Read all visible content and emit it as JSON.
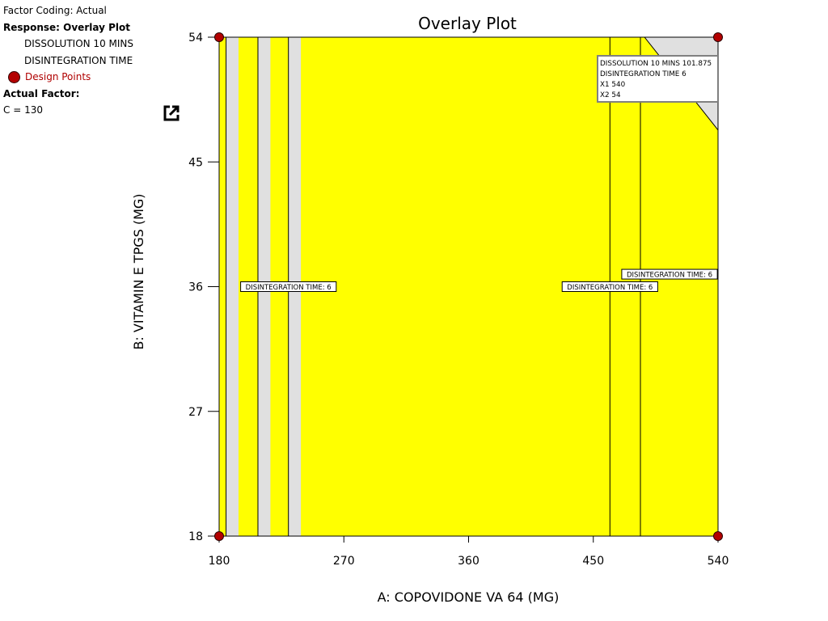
{
  "legend": {
    "factor_coding": "Factor Coding: Actual",
    "response": "Response: Overlay Plot",
    "items": [
      "DISSOLUTION 10 MINS",
      "DISINTEGRATION TIME"
    ],
    "design_points": "Design Points",
    "actual_factor_label": "Actual Factor:",
    "actual_factor_value": "C = 130"
  },
  "colors": {
    "feasible": "#ffff00",
    "infeasible": "#e0e0e0",
    "design_point": "#b30000"
  },
  "chart_data": {
    "type": "contour-overlay",
    "title": "Overlay Plot",
    "xlabel": "A: COPOVIDONE VA 64 (MG)",
    "ylabel": "B: VITAMIN E TPGS (MG)",
    "xlim": [
      180,
      540
    ],
    "ylim": [
      18,
      54
    ],
    "xticks": [
      180,
      270,
      360,
      450,
      540
    ],
    "yticks": [
      18,
      27,
      36,
      45,
      54
    ],
    "grey_bands_x": [
      [
        185,
        194
      ],
      [
        208,
        217
      ],
      [
        230,
        239
      ]
    ],
    "contour_lines_x": [
      185,
      208,
      230,
      462,
      484
    ],
    "grey_corner": [
      [
        487,
        54
      ],
      [
        540,
        54
      ],
      [
        540,
        47.3
      ]
    ],
    "contour_labels": [
      {
        "text": "DISINTEGRATION TIME: 6",
        "x": 230,
        "y": 36
      },
      {
        "text": "DISINTEGRATION TIME: 6",
        "x": 505,
        "y": 36.9
      },
      {
        "text": "DISINTEGRATION TIME: 6",
        "x": 462,
        "y": 36
      }
    ],
    "design_points": [
      [
        180,
        54
      ],
      [
        540,
        54
      ],
      [
        180,
        18
      ],
      [
        540,
        18
      ]
    ],
    "tooltip": {
      "lines": [
        "DISSOLUTION 10 MINS  101.875",
        "DISINTEGRATION TIME  6",
        "X1  540",
        "X2  54"
      ]
    }
  }
}
